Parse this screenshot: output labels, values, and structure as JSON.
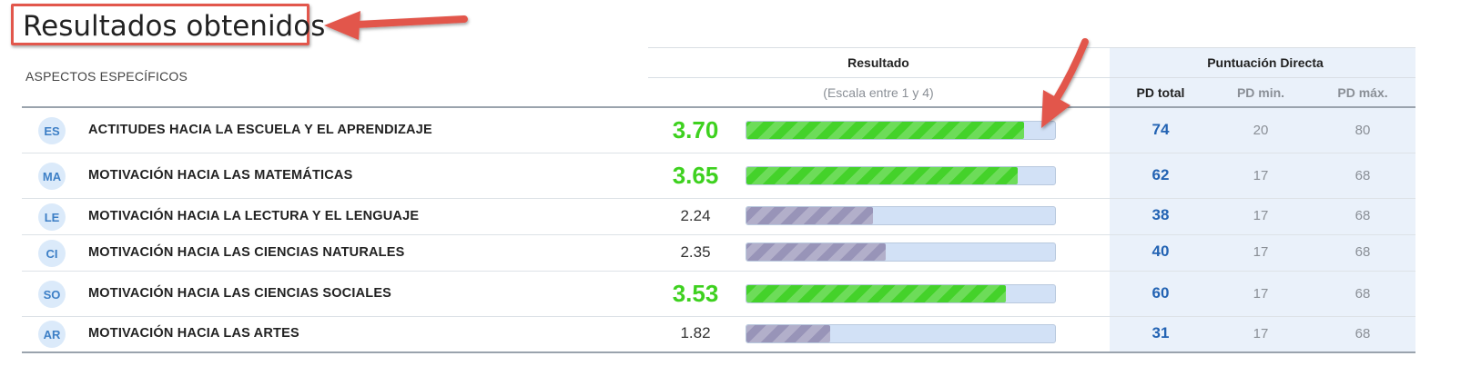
{
  "title": "Resultados obtenidos",
  "header": {
    "section_label": "ASPECTOS ESPECÍFICOS",
    "resultado": "Resultado",
    "escala": "(Escala entre 1 y 4)",
    "puntuacion_directa": "Puntuación Directa",
    "pd_total": "PD total",
    "pd_min": "PD min.",
    "pd_max": "PD máx."
  },
  "colors": {
    "high_score": "#3ed11f",
    "bar_fill_high": "#44d22a",
    "bar_fill_low": "#9894b8",
    "bar_track": "#d2e1f6",
    "pd_total": "#2363b3",
    "annotation": "#e2574c"
  },
  "rows": [
    {
      "code": "ES",
      "label": "ACTITUDES HACIA LA ESCUELA Y EL APRENDIZAJE",
      "score": "3.70",
      "high": true,
      "fraction": 0.9,
      "pd_total": "74",
      "pd_min": "20",
      "pd_max": "80"
    },
    {
      "code": "MA",
      "label": "MOTIVACIÓN HACIA LAS MATEMÁTICAS",
      "score": "3.65",
      "high": true,
      "fraction": 0.88,
      "pd_total": "62",
      "pd_min": "17",
      "pd_max": "68"
    },
    {
      "code": "LE",
      "label": "MOTIVACIÓN HACIA LA LECTURA Y EL LENGUAJE",
      "score": "2.24",
      "high": false,
      "fraction": 0.41,
      "pd_total": "38",
      "pd_min": "17",
      "pd_max": "68"
    },
    {
      "code": "CI",
      "label": "MOTIVACIÓN HACIA LAS CIENCIAS NATURALES",
      "score": "2.35",
      "high": false,
      "fraction": 0.45,
      "pd_total": "40",
      "pd_min": "17",
      "pd_max": "68"
    },
    {
      "code": "SO",
      "label": "MOTIVACIÓN HACIA LAS CIENCIAS SOCIALES",
      "score": "3.53",
      "high": true,
      "fraction": 0.84,
      "pd_total": "60",
      "pd_min": "17",
      "pd_max": "68"
    },
    {
      "code": "AR",
      "label": "MOTIVACIÓN HACIA LAS ARTES",
      "score": "1.82",
      "high": false,
      "fraction": 0.27,
      "pd_total": "31",
      "pd_min": "17",
      "pd_max": "68"
    }
  ]
}
